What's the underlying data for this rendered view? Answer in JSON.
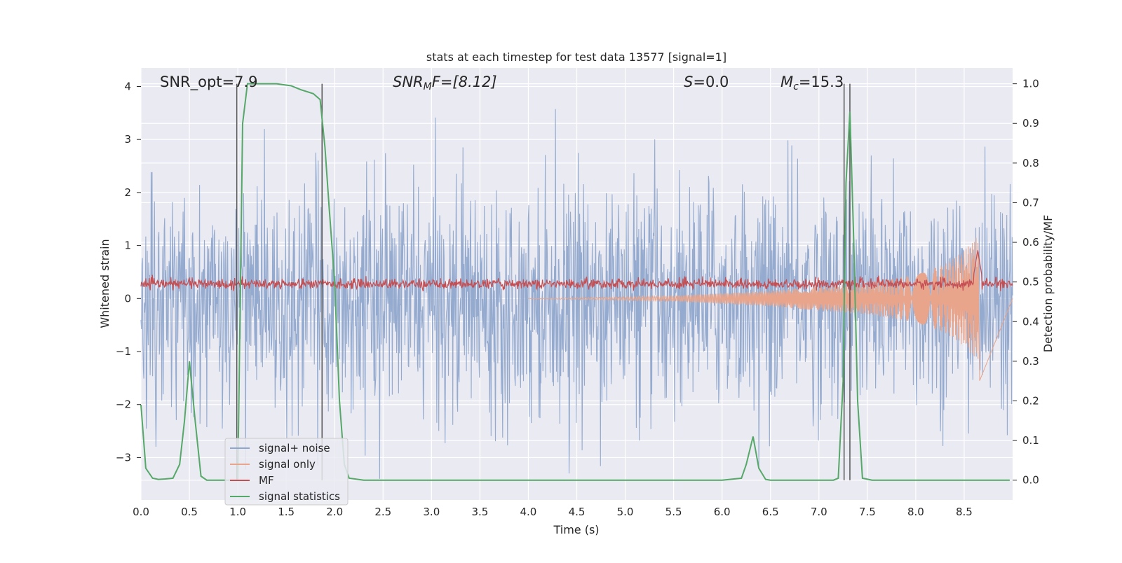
{
  "chart_data": {
    "type": "line",
    "title": "stats at each timestep for test data 13577 [signal=1]",
    "xlabel": "Time (s)",
    "ylabel": "Whitened strain",
    "y2label": "Detection probability/MF",
    "xlim": [
      0.0,
      9.0
    ],
    "ylim": [
      -3.8,
      4.35
    ],
    "y2lim": [
      -0.05,
      1.04
    ],
    "x_ticks": [
      "0.0",
      "0.5",
      "1.0",
      "1.5",
      "2.0",
      "2.5",
      "3.0",
      "3.5",
      "4.0",
      "4.5",
      "5.0",
      "5.5",
      "6.0",
      "6.5",
      "7.0",
      "7.5",
      "8.0",
      "8.5"
    ],
    "x_tick_values": [
      0.0,
      0.5,
      1.0,
      1.5,
      2.0,
      2.5,
      3.0,
      3.5,
      4.0,
      4.5,
      5.0,
      5.5,
      6.0,
      6.5,
      7.0,
      7.5,
      8.0,
      8.5
    ],
    "y_ticks": [
      "4",
      "3",
      "2",
      "1",
      "0",
      "−1",
      "−2",
      "−3"
    ],
    "y_tick_values": [
      4,
      3,
      2,
      1,
      0,
      -1,
      -2,
      -3
    ],
    "y2_ticks": [
      "1.0",
      "0.9",
      "0.8",
      "0.7",
      "0.6",
      "0.5",
      "0.4",
      "0.3",
      "0.2",
      "0.1",
      "0.0"
    ],
    "y2_tick_values": [
      1.0,
      0.9,
      0.8,
      0.7,
      0.6,
      0.5,
      0.4,
      0.3,
      0.2,
      0.1,
      0.0
    ],
    "grid": true,
    "legend_position": "bottom-left",
    "annotations": {
      "snr_opt": "SNR_opt=7.9",
      "snr_mf_main": "SNR",
      "snr_mf_sub": "M",
      "snr_mf_rest": "F=[8.12]",
      "s_main": "S",
      "s_rest": "=0.0",
      "mc_main": "M",
      "mc_sub": "c",
      "mc_rest": "=15.3"
    },
    "vertical_lines_x": [
      0.99,
      1.87,
      7.26,
      7.32
    ],
    "series": [
      {
        "name": "signal+ noise",
        "color": "#8fa6cc",
        "description": "noisy whitened strain, amplitude envelope roughly ±2.3 with peaks to 4.0 and -3.4"
      },
      {
        "name": "signal only",
        "color": "#e8a58c",
        "chirp_end_x": 8.65,
        "envelope": [
          [
            5.5,
            0.05
          ],
          [
            6.5,
            0.15
          ],
          [
            7.5,
            0.3
          ],
          [
            8.0,
            0.45
          ],
          [
            8.3,
            0.65
          ],
          [
            8.5,
            0.9
          ],
          [
            8.62,
            1.15
          ]
        ]
      },
      {
        "name": "MF",
        "color": "#c44e52",
        "baseline_y2": 0.495,
        "peak": {
          "x": 8.64,
          "y2": 0.58
        }
      },
      {
        "name": "signal statistics",
        "color": "#55a868",
        "x": [
          0.0,
          0.05,
          0.12,
          0.18,
          0.25,
          0.33,
          0.4,
          0.45,
          0.5,
          0.56,
          0.62,
          0.68,
          0.75,
          0.85,
          0.95,
          1.0,
          1.05,
          1.1,
          1.2,
          1.4,
          1.55,
          1.65,
          1.78,
          1.85,
          1.9,
          1.94,
          2.0,
          2.05,
          2.1,
          2.15,
          2.3,
          3.0,
          4.0,
          5.0,
          5.5,
          6.0,
          6.2,
          6.25,
          6.32,
          6.38,
          6.45,
          6.5,
          7.0,
          7.15,
          7.2,
          7.25,
          7.28,
          7.32,
          7.36,
          7.4,
          7.45,
          7.55,
          8.0,
          8.5,
          8.97
        ],
        "y2": [
          0.19,
          0.03,
          0.005,
          0.002,
          0.003,
          0.005,
          0.04,
          0.15,
          0.3,
          0.15,
          0.01,
          0.0,
          0.0,
          0.0,
          0.0,
          0.0,
          0.9,
          1.0,
          1.0,
          1.0,
          0.995,
          0.985,
          0.975,
          0.96,
          0.84,
          0.7,
          0.5,
          0.2,
          0.04,
          0.005,
          0.0,
          0.0,
          0.0,
          0.0,
          0.0,
          0.0,
          0.005,
          0.04,
          0.11,
          0.03,
          0.002,
          0.0,
          0.0,
          0.0,
          0.005,
          0.25,
          0.75,
          0.93,
          0.6,
          0.2,
          0.005,
          0.0,
          0.0,
          0.0,
          0.0
        ]
      }
    ]
  }
}
